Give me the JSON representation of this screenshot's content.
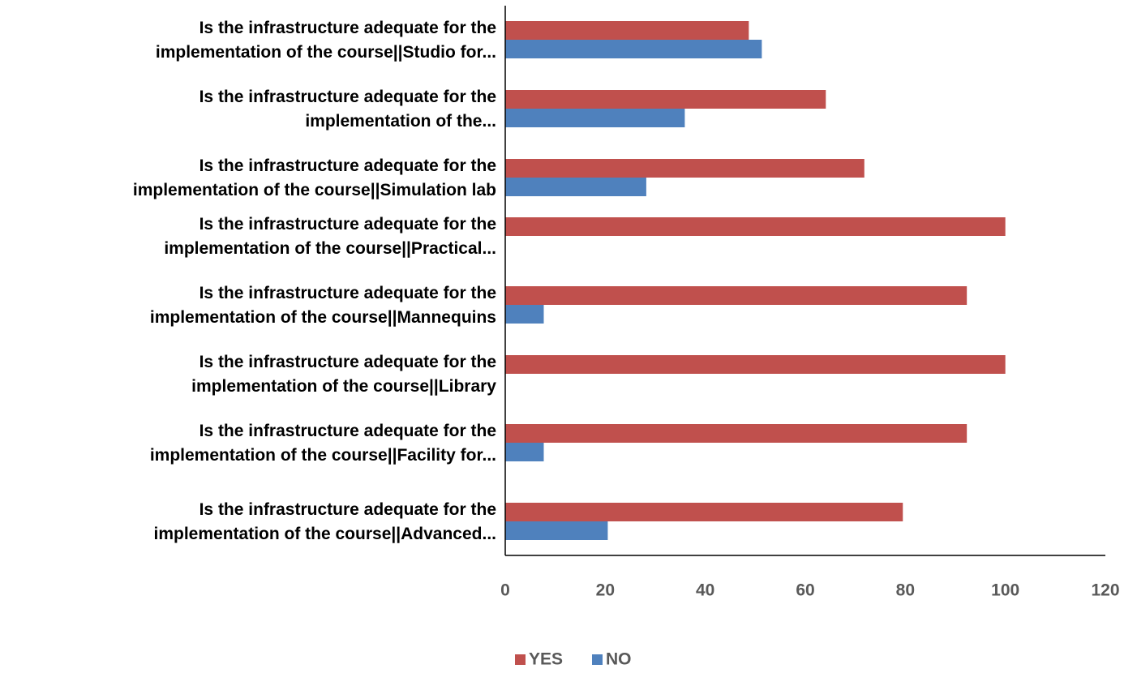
{
  "chart_data": {
    "type": "bar",
    "orientation": "horizontal",
    "categories": [
      [
        "Is the infrastructure adequate for the",
        "implementation of the course||Studio for..."
      ],
      [
        "Is the infrastructure adequate for the",
        "implementation of the..."
      ],
      [
        "Is the infrastructure adequate for the",
        "implementation of the course||Simulation lab"
      ],
      [
        "Is the infrastructure adequate for the",
        "implementation of the course||Practical..."
      ],
      [
        "Is the infrastructure adequate for the",
        "implementation of the course||Mannequins"
      ],
      [
        "Is the infrastructure adequate for the",
        "implementation of the course||Library"
      ],
      [
        "Is the infrastructure adequate for the",
        "implementation of the course||Facility for..."
      ],
      [
        "Is the infrastructure adequate for the",
        "implementation of the course||Advanced..."
      ]
    ],
    "series": [
      {
        "name": "YES",
        "color": "#c0504d",
        "values": [
          48.7,
          64.1,
          71.8,
          100,
          92.3,
          100,
          92.3,
          79.5
        ]
      },
      {
        "name": "NO",
        "color": "#4f81bd",
        "values": [
          51.3,
          35.9,
          28.2,
          0,
          7.7,
          0,
          7.7,
          20.5
        ]
      }
    ],
    "xlim": [
      0,
      120
    ],
    "xticks": [
      "0",
      "20",
      "40",
      "60",
      "80",
      "100",
      "120"
    ],
    "title": "",
    "xlabel": "",
    "ylabel": "",
    "grid": false,
    "legend": "bottom"
  }
}
